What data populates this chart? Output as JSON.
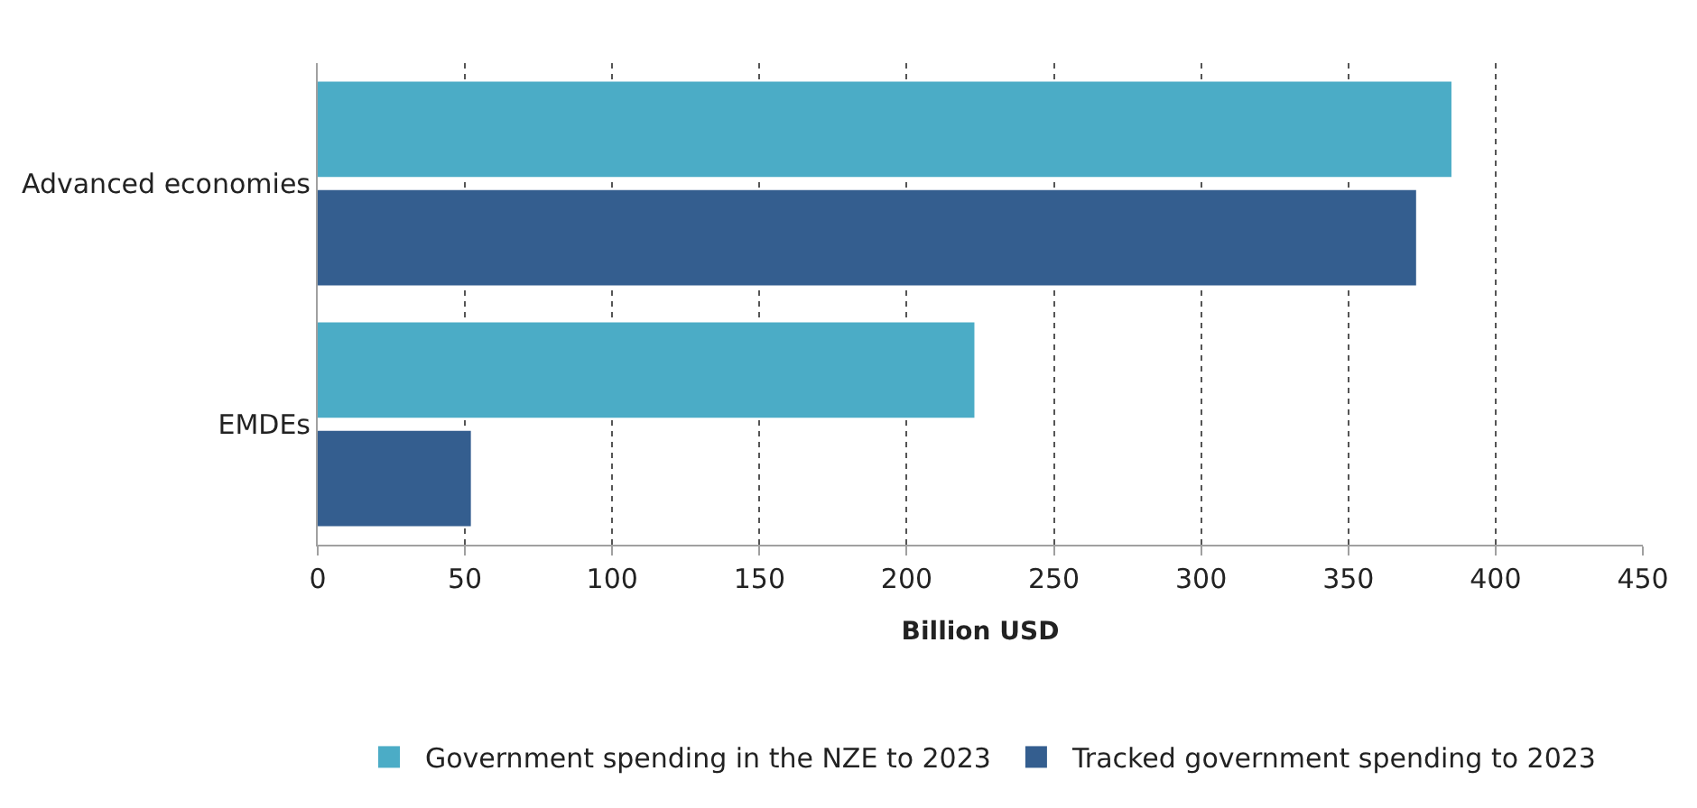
{
  "chart_data": {
    "type": "bar",
    "orientation": "horizontal",
    "xlabel": "Billion USD",
    "categories": [
      "Advanced economies",
      "EMDEs"
    ],
    "series": [
      {
        "name": "Government spending in the NZE to 2023",
        "color": "#4bacc6",
        "values": [
          385,
          223
        ]
      },
      {
        "name": "Tracked government spending to 2023",
        "color": "#345e8f",
        "values": [
          373,
          52
        ]
      }
    ],
    "xlim": [
      0,
      450
    ],
    "xticks": [
      0,
      50,
      100,
      150,
      200,
      250,
      300,
      350,
      400,
      450
    ],
    "grid": "x",
    "legend": "bottom"
  }
}
